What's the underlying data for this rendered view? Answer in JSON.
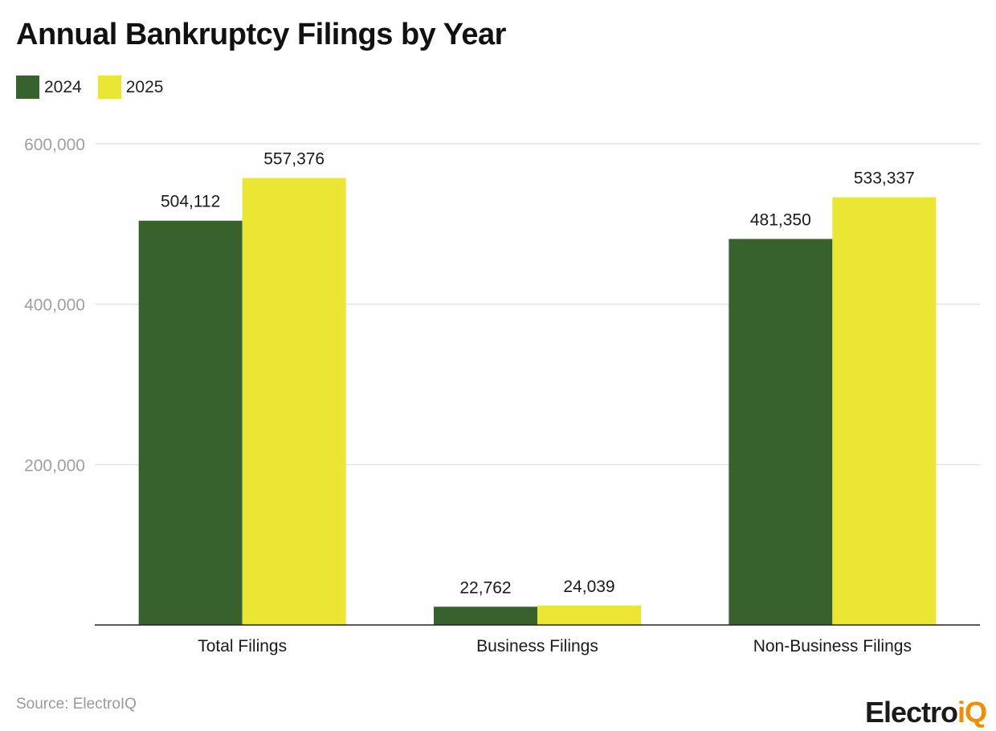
{
  "chart_data": {
    "type": "bar",
    "title": "Annual Bankruptcy Filings by Year",
    "categories": [
      "Total Filings",
      "Business Filings",
      "Non-Business Filings"
    ],
    "series": [
      {
        "name": "2024",
        "color": "#38622d",
        "values": [
          504112,
          22762,
          481350
        ],
        "labels": [
          "504,112",
          "22,762",
          "481,350"
        ]
      },
      {
        "name": "2025",
        "color": "#ebe633",
        "values": [
          557376,
          24039,
          533337
        ],
        "labels": [
          "557,376",
          "24,039",
          "533,337"
        ]
      }
    ],
    "ylim": [
      0,
      600000
    ],
    "yticks": [
      200000,
      400000,
      600000
    ],
    "ytick_labels": [
      "200,000",
      "400,000",
      "600,000"
    ],
    "grid": true,
    "legend": "top-left",
    "xlabel": "",
    "ylabel": ""
  },
  "footer": {
    "source": "Source: ElectroIQ",
    "logo_main": "Electro",
    "logo_accent": "iQ"
  }
}
